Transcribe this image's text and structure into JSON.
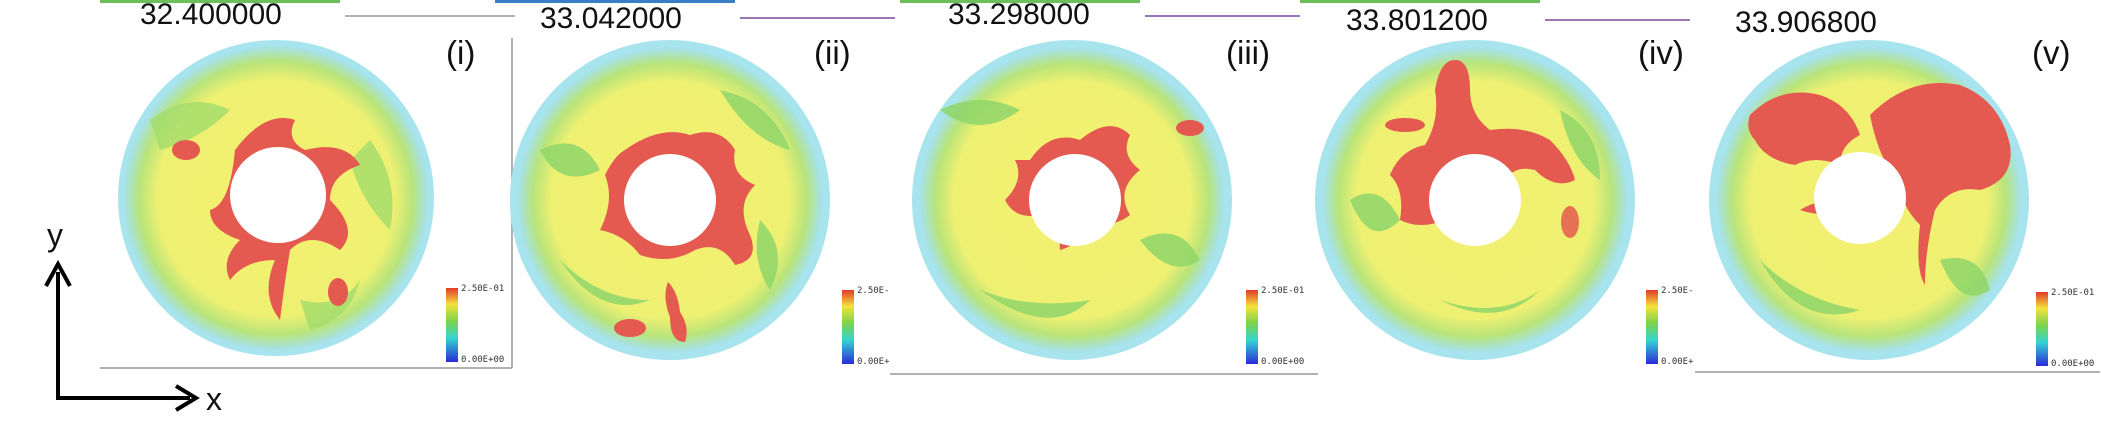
{
  "panels": [
    {
      "id": "i",
      "time": "32.400000",
      "label": "(i)",
      "colorbar": {
        "max": "2.50E-01",
        "min": "0.00E+00"
      }
    },
    {
      "id": "ii",
      "time": "33.042000",
      "label": "(ii)",
      "colorbar": {
        "max": "2.50E-",
        "min": "0.00E+"
      }
    },
    {
      "id": "iii",
      "time": "33.298000",
      "label": "(iii)",
      "colorbar": {
        "max": "2.50E-01",
        "min": "0.00E+00"
      }
    },
    {
      "id": "iv",
      "time": "33.801200",
      "label": "(iv)",
      "colorbar": {
        "max": "2.50E-",
        "min": "0.00E+"
      }
    },
    {
      "id": "v",
      "time": "33.906800",
      "label": "(v)",
      "colorbar": {
        "max": "2.50E-01",
        "min": "0.00E+00"
      }
    }
  ],
  "axes": {
    "y_label": "y",
    "x_label": "x"
  },
  "colors": {
    "outer_ring": "#a8e4ee",
    "green": "#9ad86a",
    "yellow": "#f2ef6c",
    "red": "#e45a50",
    "line": "#7a4aa0"
  }
}
